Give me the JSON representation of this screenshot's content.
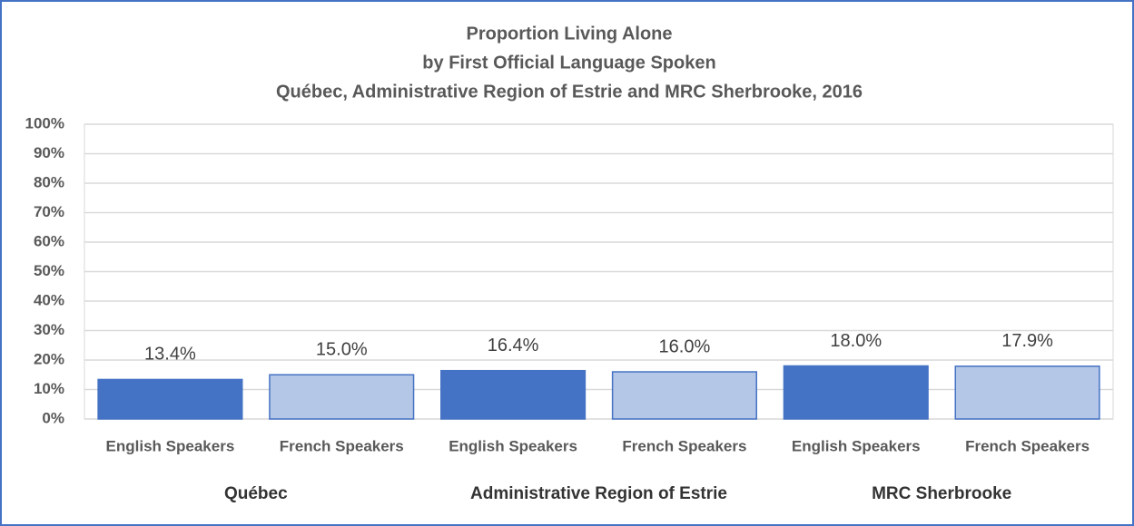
{
  "chart_data": {
    "type": "bar",
    "title": "Proportion Living Alone",
    "subtitle": [
      "by First Official Language Spoken",
      "Québec, Administrative Region of Estrie and MRC Sherbrooke, 2016"
    ],
    "categories": [
      "English Speakers",
      "French Speakers",
      "English Speakers",
      "French Speakers",
      "English Speakers",
      "French Speakers"
    ],
    "groups": [
      "Québec",
      "Administrative Region of Estrie",
      "MRC Sherbrooke"
    ],
    "values": [
      13.4,
      15.0,
      16.4,
      16.0,
      18.0,
      17.9
    ],
    "value_labels": [
      "13.4%",
      "15.0%",
      "16.4%",
      "16.0%",
      "18.0%",
      "17.9%"
    ],
    "colors": [
      "#4472c4",
      "#b4c7e7",
      "#4472c4",
      "#b4c7e7",
      "#4472c4",
      "#b4c7e7"
    ],
    "ylim": [
      0,
      100
    ],
    "yticks": [
      {
        "value": 0,
        "label": "0%"
      },
      {
        "value": 10,
        "label": "10%"
      },
      {
        "value": 20,
        "label": "20%"
      },
      {
        "value": 30,
        "label": "30%"
      },
      {
        "value": 40,
        "label": "40%"
      },
      {
        "value": 50,
        "label": "50%"
      },
      {
        "value": 60,
        "label": "60%"
      },
      {
        "value": 70,
        "label": "70%"
      },
      {
        "value": 80,
        "label": "80%"
      },
      {
        "value": 90,
        "label": "90%"
      },
      {
        "value": 100,
        "label": "100%"
      }
    ],
    "grid": true
  }
}
